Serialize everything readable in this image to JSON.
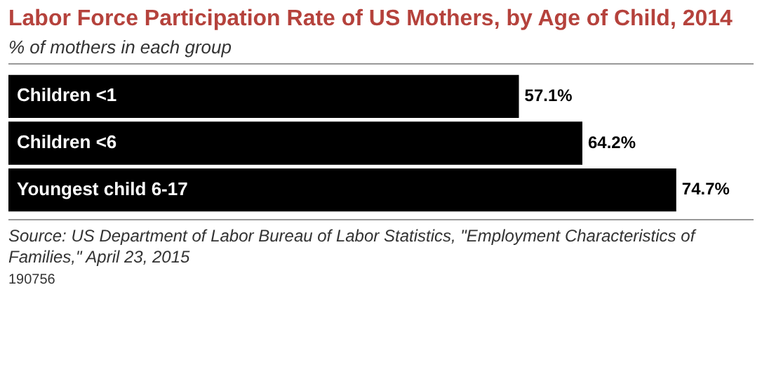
{
  "chart_data": {
    "type": "bar",
    "orientation": "horizontal",
    "title": "Labor Force Participation Rate of US Mothers, by Age of Child, 2014",
    "subtitle": "% of mothers in each group",
    "categories": [
      "Children <1",
      "Children <6",
      "Youngest child 6-17"
    ],
    "values": [
      57.1,
      64.2,
      74.7
    ],
    "color": "#000000",
    "data_labels": true,
    "value_labels": [
      "57.1%",
      "64.2%",
      "74.7%"
    ],
    "annotations": [
      "Source: US Department of Labor Bureau of Labor Statistics, \"Employment Characteristics of Families,\" April 23, 2015",
      "190756"
    ]
  }
}
